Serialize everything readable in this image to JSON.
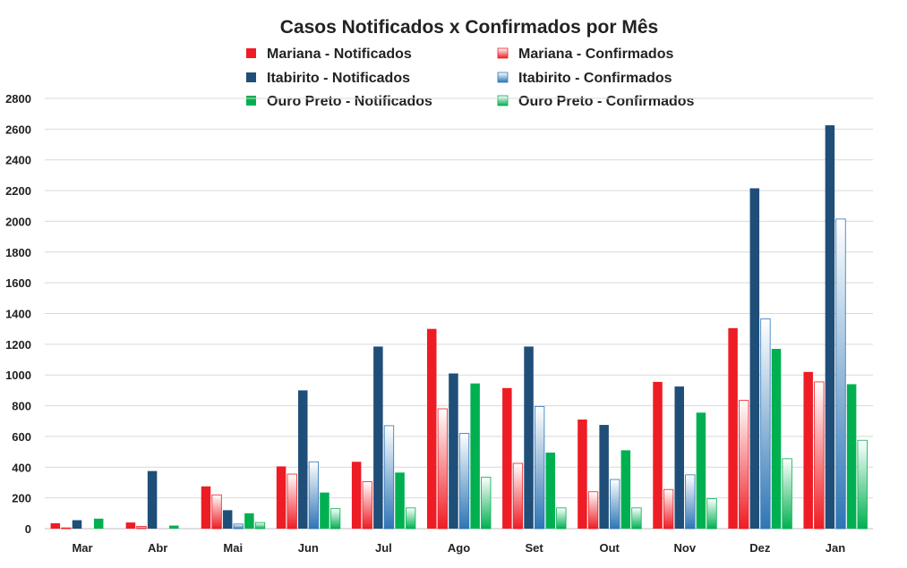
{
  "chart_data": {
    "type": "bar",
    "title": "Casos Notificados x Confirmados por Mês",
    "xlabel": "",
    "ylabel": "",
    "ylim": [
      0,
      2800
    ],
    "yticks": [
      0,
      200,
      400,
      600,
      800,
      1000,
      1200,
      1400,
      1600,
      1800,
      2000,
      2200,
      2400,
      2600,
      2800
    ],
    "grid": true,
    "legend_position": "top",
    "categories": [
      "Mar",
      "Abr",
      "Mai",
      "Jun",
      "Jul",
      "Ago",
      "Set",
      "Out",
      "Nov",
      "Dez",
      "Jan"
    ],
    "series": [
      {
        "name": "Mariana - Notificados",
        "color": "#ee1c24",
        "style": "solid",
        "values": [
          35,
          40,
          275,
          405,
          435,
          1300,
          915,
          710,
          955,
          1305,
          1020
        ]
      },
      {
        "name": "Mariana - Confirmados",
        "color": "#ee1c24",
        "style": "gradient",
        "values": [
          5,
          15,
          220,
          355,
          305,
          780,
          425,
          240,
          255,
          835,
          955
        ]
      },
      {
        "name": "Itabirito - Notificados",
        "color": "#1f4e79",
        "style": "solid",
        "values": [
          55,
          375,
          120,
          900,
          1185,
          1010,
          1185,
          675,
          925,
          2215,
          2625
        ]
      },
      {
        "name": "Itabirito - Confirmados",
        "color": "#2e75b6",
        "style": "gradient",
        "values": [
          0,
          0,
          30,
          435,
          670,
          620,
          795,
          320,
          350,
          1365,
          2015
        ]
      },
      {
        "name": "Ouro Preto - Notificados",
        "color": "#00b050",
        "style": "solid",
        "values": [
          65,
          20,
          100,
          235,
          365,
          945,
          495,
          510,
          755,
          1170,
          940
        ]
      },
      {
        "name": "Ouro Preto - Confirmados",
        "color": "#00b050",
        "style": "gradient",
        "values": [
          0,
          0,
          40,
          130,
          135,
          335,
          135,
          135,
          195,
          455,
          575
        ]
      }
    ],
    "legend_order": [
      0,
      1,
      2,
      3,
      4,
      5
    ]
  }
}
